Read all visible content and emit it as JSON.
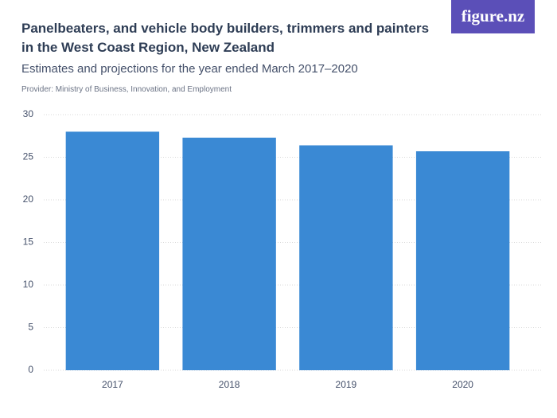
{
  "logo": "figure.nz",
  "chart_data": {
    "type": "bar",
    "title": "Panelbeaters, and vehicle body builders, trimmers and painters in the West Coast Region, New Zealand",
    "subtitle": "Estimates and projections for the year ended March 2017–2020",
    "provider": "Provider: Ministry of Business, Innovation, and Employment",
    "categories": [
      "2017",
      "2018",
      "2019",
      "2020"
    ],
    "values": [
      28,
      27.3,
      26.4,
      25.7
    ],
    "color": "#3a89d4",
    "ylim": [
      0,
      30
    ],
    "yticks": [
      0,
      5,
      10,
      15,
      20,
      25,
      30
    ],
    "grid": true
  }
}
